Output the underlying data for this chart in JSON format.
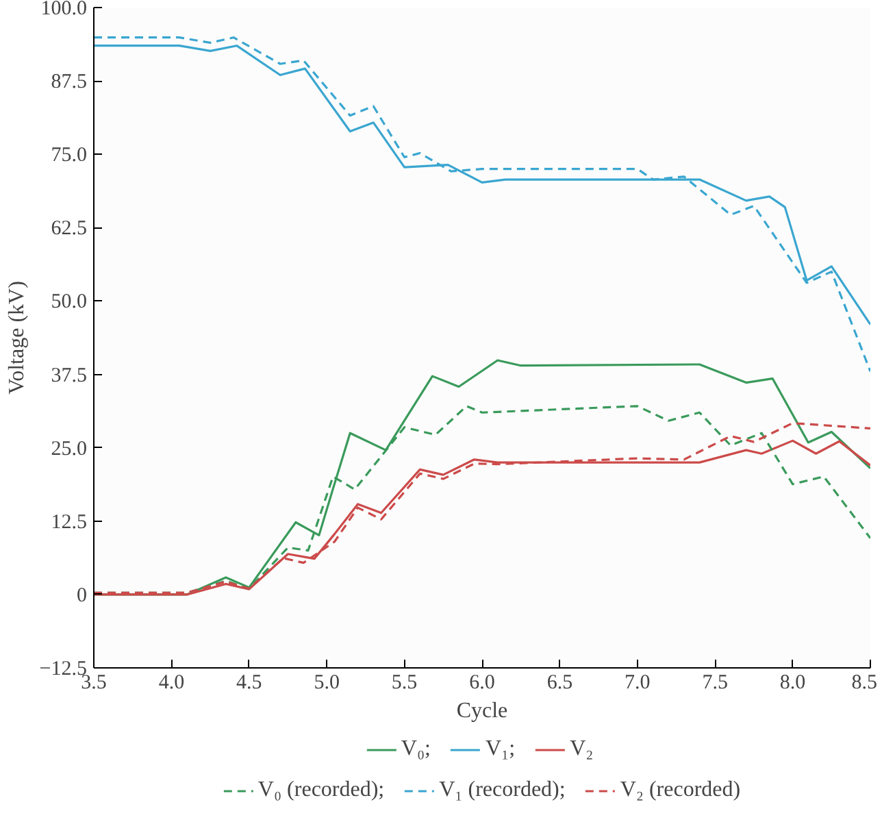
{
  "chart_data": {
    "type": "line",
    "xlabel": "Cycle",
    "ylabel": "Voltage (kV)",
    "xlim": [
      3.5,
      8.5
    ],
    "ylim": [
      -12.5,
      100
    ],
    "xticks": [
      3.5,
      {
        "value": 4,
        "label": "4.0"
      },
      4.5,
      {
        "value": 5,
        "label": "5.0"
      },
      5.5,
      {
        "value": 6,
        "label": "6.0"
      },
      6.5,
      {
        "value": 7,
        "label": "7.0"
      },
      7.5,
      {
        "value": 8,
        "label": "8.0"
      },
      8.5
    ],
    "yticks": [
      -12.5,
      0,
      12.5,
      {
        "value": 25,
        "label": "25.0"
      },
      37.5,
      {
        "value": 50,
        "label": "50.0"
      },
      62.5,
      {
        "value": 75,
        "label": "75.0"
      },
      87.5,
      {
        "value": 100,
        "label": "100.0"
      }
    ],
    "grid": false,
    "legend": "bottom",
    "marker": "none",
    "series": [
      {
        "name": "V₀;",
        "color": "#3a9a5b",
        "line_style": "solid",
        "x": [
          3.5,
          4.1,
          4.35,
          4.5,
          4.8,
          4.95,
          5.04,
          5.15,
          5.38,
          5.68,
          5.85,
          6.1,
          6.25,
          7.4,
          7.7,
          7.87,
          8.1,
          8.25,
          8.5
        ],
        "values": [
          0,
          0,
          2.9,
          1.2,
          12.3,
          10.1,
          18,
          27.5,
          24.6,
          37.2,
          35.4,
          39.9,
          39,
          39.2,
          36.1,
          36.8,
          25.9,
          27.7,
          21.5
        ]
      },
      {
        "name": "V₁;",
        "color": "#3aa6d0",
        "line_style": "solid",
        "x": [
          3.5,
          4.05,
          4.25,
          4.42,
          4.7,
          4.86,
          5.15,
          5.3,
          5.5,
          5.78,
          6.0,
          6.15,
          7.4,
          7.7,
          7.85,
          7.95,
          8.09,
          8.25,
          8.5
        ],
        "values": [
          93.5,
          93.5,
          92.6,
          93.5,
          88.5,
          89.6,
          78.9,
          80.4,
          72.8,
          73.2,
          70.2,
          70.7,
          70.7,
          67.1,
          67.8,
          66,
          53.5,
          55.9,
          46
        ]
      },
      {
        "name": "V₂",
        "color": "#cc4a4a",
        "line_style": "solid",
        "x": [
          3.5,
          4.1,
          4.35,
          4.5,
          4.75,
          4.92,
          5.05,
          5.2,
          5.35,
          5.6,
          5.75,
          5.95,
          6.1,
          7.4,
          7.7,
          7.8,
          8.0,
          8.15,
          8.3,
          8.5
        ],
        "values": [
          0,
          0,
          1.8,
          0.9,
          6.9,
          6.1,
          10.3,
          15.4,
          13.9,
          21.3,
          20.4,
          23,
          22.5,
          22.5,
          24.6,
          24,
          26.2,
          24,
          26.1,
          22
        ]
      },
      {
        "name": "V₀ (recorded);",
        "color": "#3a9a5b",
        "line_style": "dashed",
        "x": [
          3.5,
          4.1,
          4.35,
          4.5,
          4.75,
          4.88,
          5.04,
          5.18,
          5.5,
          5.7,
          5.9,
          6.0,
          7.0,
          7.2,
          7.4,
          7.6,
          7.8,
          8.0,
          8.2,
          8.5
        ],
        "values": [
          0.3,
          0.3,
          2.3,
          1,
          8,
          7.5,
          20.1,
          17.9,
          28.5,
          27.2,
          32.1,
          31,
          32.1,
          29.6,
          31,
          25.4,
          27.5,
          18.8,
          20.1,
          9.6
        ]
      },
      {
        "name": "V₁ (recorded);",
        "color": "#3aa6d0",
        "line_style": "dashed",
        "x": [
          3.5,
          4.05,
          4.25,
          4.4,
          4.7,
          4.85,
          5.15,
          5.3,
          5.5,
          5.6,
          5.8,
          6.0,
          7.0,
          7.1,
          7.3,
          7.6,
          7.75,
          8.09,
          8.25,
          8.5
        ],
        "values": [
          94.9,
          94.9,
          94,
          94.9,
          90.4,
          91,
          81.6,
          83.2,
          74.5,
          75.2,
          72.1,
          72.5,
          72.5,
          70.7,
          71.2,
          64.7,
          66.2,
          53.1,
          55,
          38
        ]
      },
      {
        "name": "V₂ (recorded)",
        "color": "#cc4a4a",
        "line_style": "dashed",
        "x": [
          3.5,
          4.1,
          4.35,
          4.5,
          4.72,
          4.85,
          5.05,
          5.2,
          5.35,
          5.6,
          5.75,
          5.95,
          6.1,
          7.0,
          7.3,
          7.6,
          7.75,
          8.0,
          8.5
        ],
        "values": [
          0.3,
          0.3,
          2.2,
          1,
          6.2,
          5.4,
          9,
          14.8,
          12.8,
          20.6,
          19.7,
          22.3,
          22.2,
          23.2,
          23,
          27,
          26,
          29.2,
          28.3
        ]
      }
    ]
  }
}
